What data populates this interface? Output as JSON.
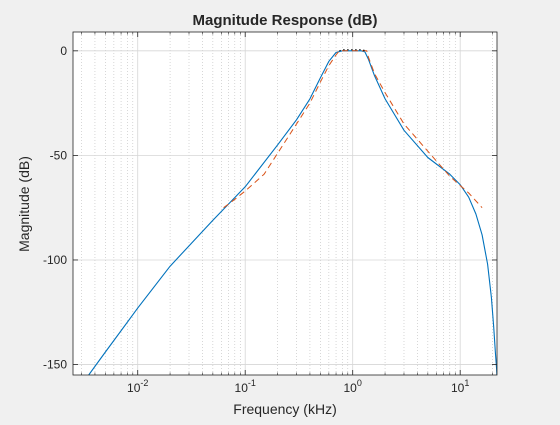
{
  "chart_data": {
    "type": "line",
    "title": "Magnitude Response (dB)",
    "xlabel": "Frequency (kHz)",
    "ylabel": "Magnitude (dB)",
    "xscale": "log",
    "xlim": [
      0.0025,
      22
    ],
    "ylim": [
      -155,
      9
    ],
    "grid": true,
    "minor_grid_x": true,
    "x_ticks": [
      {
        "value": 0.01,
        "base": "10",
        "exp": "-2"
      },
      {
        "value": 0.1,
        "base": "10",
        "exp": "-1"
      },
      {
        "value": 1,
        "base": "10",
        "exp": "0"
      },
      {
        "value": 10,
        "base": "10",
        "exp": "1"
      }
    ],
    "y_ticks": [
      {
        "value": 0,
        "label": "0"
      },
      {
        "value": -50,
        "label": "-50"
      },
      {
        "value": -100,
        "label": "-100"
      },
      {
        "value": -150,
        "label": "-150"
      }
    ],
    "series": [
      {
        "color": "#0072BD",
        "style": "solid",
        "x": [
          0.0035,
          0.005,
          0.01,
          0.02,
          0.05,
          0.1,
          0.2,
          0.3,
          0.4,
          0.5,
          0.6,
          0.7,
          0.8,
          0.9,
          1.0,
          1.1,
          1.2,
          1.3,
          1.4,
          1.6,
          2,
          3,
          5,
          8,
          10,
          12,
          14,
          16,
          18,
          19.5,
          20.5,
          21.3,
          21.8,
          22
        ],
        "y": [
          -155,
          -144,
          -123,
          -103,
          -81,
          -65,
          -45,
          -33,
          -23,
          -13,
          -5,
          -0.8,
          0,
          0,
          0,
          0,
          0,
          -0.5,
          -4,
          -12,
          -23,
          -38,
          -51,
          -59,
          -64,
          -70,
          -78,
          -88,
          -102,
          -118,
          -132,
          -145,
          -152,
          -156
        ]
      },
      {
        "color": "#D95319",
        "style": "dashed",
        "x": [
          0.063,
          0.08,
          0.1,
          0.15,
          0.2,
          0.3,
          0.4,
          0.5,
          0.6,
          0.7,
          0.75,
          0.8,
          0.9,
          1.0,
          1.1,
          1.2,
          1.3,
          1.35,
          1.4,
          1.6,
          2,
          3,
          5,
          8,
          12,
          16
        ],
        "y": [
          -75,
          -71,
          -67,
          -59,
          -49,
          -35,
          -25,
          -15,
          -7,
          -2,
          0,
          0,
          0,
          0,
          0,
          0,
          0,
          0,
          -3,
          -11,
          -20,
          -35,
          -48,
          -60,
          -68,
          -75
        ]
      },
      {
        "color": "#000000",
        "style": "dotted",
        "x": [
          0.75,
          0.8,
          1.0,
          1.2,
          1.35
        ],
        "y": [
          0,
          0.5,
          0.5,
          0.5,
          0
        ]
      }
    ]
  }
}
